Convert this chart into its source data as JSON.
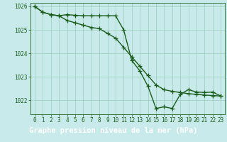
{
  "line1_x": [
    0,
    1,
    2,
    3,
    4,
    5,
    6,
    7,
    8,
    9,
    10,
    11,
    12,
    13,
    14,
    15,
    16,
    17,
    18,
    19,
    20,
    21,
    22,
    23
  ],
  "line1_y": [
    1026.0,
    1025.75,
    1025.65,
    1025.6,
    1025.4,
    1025.3,
    1025.2,
    1025.1,
    1025.05,
    1024.85,
    1024.65,
    1024.25,
    1023.85,
    1023.45,
    1023.05,
    1022.65,
    1022.45,
    1022.38,
    1022.33,
    1022.28,
    1022.25,
    1022.22,
    1022.2,
    1022.18
  ],
  "line2_x": [
    0,
    1,
    2,
    3,
    4,
    5,
    6,
    7,
    8,
    9,
    10,
    11,
    12,
    13,
    14,
    15,
    16,
    17,
    18,
    19,
    20,
    21,
    22,
    23
  ],
  "line2_y": [
    1026.0,
    1025.75,
    1025.65,
    1025.6,
    1025.65,
    1025.62,
    1025.6,
    1025.6,
    1025.6,
    1025.6,
    1025.6,
    1025.0,
    1023.7,
    1023.25,
    1022.6,
    1021.65,
    1021.72,
    1021.65,
    1022.25,
    1022.45,
    1022.35,
    1022.33,
    1022.35,
    1022.18
  ],
  "bg_color": "#c8eaea",
  "plot_bg_color": "#c8eaea",
  "line_color": "#1a5c1a",
  "grid_color": "#99ccbb",
  "footer_bg": "#2d6b2d",
  "footer_text": "Graphe pression niveau de la mer (hPa)",
  "footer_text_color": "#ffffff",
  "xlim": [
    -0.5,
    23.5
  ],
  "ylim": [
    1021.4,
    1026.15
  ],
  "yticks": [
    1022,
    1023,
    1024,
    1025,
    1026
  ],
  "xticks": [
    0,
    1,
    2,
    3,
    4,
    5,
    6,
    7,
    8,
    9,
    10,
    11,
    12,
    13,
    14,
    15,
    16,
    17,
    18,
    19,
    20,
    21,
    22,
    23
  ],
  "marker": "+",
  "markersize": 4,
  "linewidth": 1.0,
  "tick_fontsize": 5.5,
  "footer_fontsize": 7.5
}
